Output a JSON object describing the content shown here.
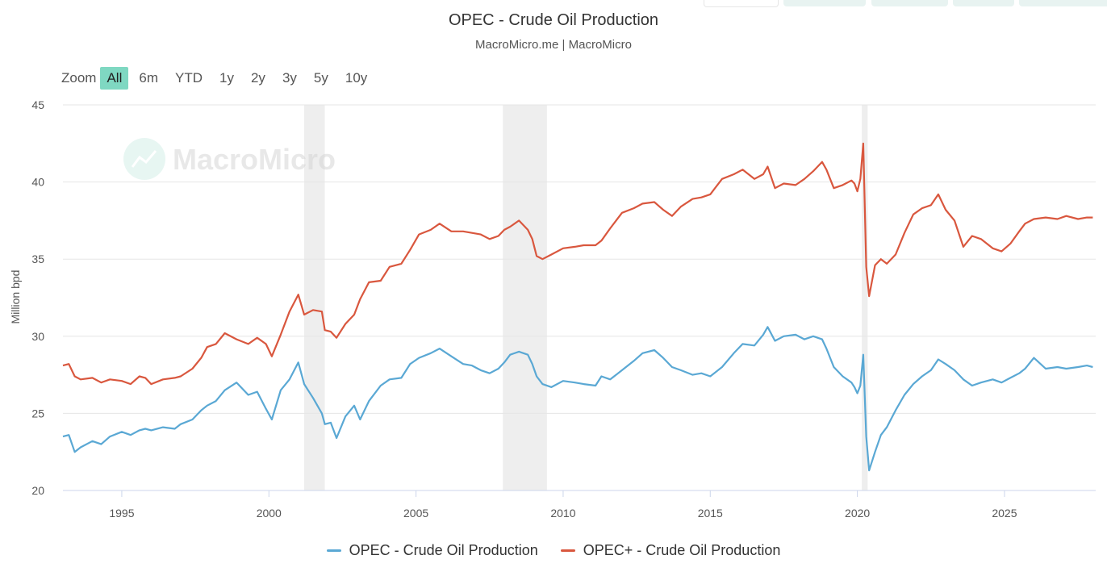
{
  "header": {
    "title": "OPEC - Crude Oil Production",
    "subtitle": "MacroMicro.me | MacroMicro"
  },
  "watermark": "MacroMicro",
  "zoom": {
    "label": "Zoom",
    "buttons": [
      "All",
      "6m",
      "YTD",
      "1y",
      "2y",
      "3y",
      "5y",
      "10y"
    ],
    "active": "All"
  },
  "colors": {
    "opec": "#5aa8d4",
    "opec_plus": "#d9573e",
    "recession": "#eeeeee",
    "grid": "#e6e6e6"
  },
  "chart_data": {
    "type": "line",
    "title": "OPEC - Crude Oil Production",
    "ylabel": "Million bpd",
    "xlabel": "",
    "ylim": [
      20,
      45
    ],
    "yticks": [
      20,
      25,
      30,
      35,
      40,
      45
    ],
    "xlim": [
      1993.0,
      2028.1
    ],
    "xticks": [
      1995,
      2000,
      2005,
      2010,
      2015,
      2020,
      2025
    ],
    "grid": true,
    "legend_position": "bottom",
    "recession_bands": [
      [
        2001.2,
        2001.9
      ],
      [
        2007.95,
        2009.45
      ],
      [
        2020.15,
        2020.35
      ]
    ],
    "series": [
      {
        "name": "OPEC - Crude Oil Production",
        "x": [
          1993.0,
          1993.2,
          1993.4,
          1993.6,
          1994.0,
          1994.3,
          1994.6,
          1995.0,
          1995.3,
          1995.6,
          1995.8,
          1996.0,
          1996.4,
          1996.8,
          1997.0,
          1997.4,
          1997.7,
          1997.9,
          1998.2,
          1998.5,
          1998.9,
          1999.3,
          1999.6,
          1999.9,
          2000.1,
          2000.4,
          2000.7,
          2001.0,
          2001.2,
          2001.5,
          2001.8,
          2001.9,
          2002.1,
          2002.3,
          2002.6,
          2002.9,
          2003.1,
          2003.4,
          2003.8,
          2004.1,
          2004.5,
          2004.8,
          2005.1,
          2005.5,
          2005.8,
          2006.2,
          2006.6,
          2006.9,
          2007.2,
          2007.5,
          2007.8,
          2008.0,
          2008.2,
          2008.5,
          2008.8,
          2008.95,
          2009.1,
          2009.3,
          2009.6,
          2010.0,
          2010.4,
          2010.7,
          2011.1,
          2011.3,
          2011.6,
          2012.0,
          2012.4,
          2012.7,
          2013.1,
          2013.4,
          2013.7,
          2014.0,
          2014.4,
          2014.7,
          2015.0,
          2015.4,
          2015.8,
          2016.1,
          2016.5,
          2016.8,
          2016.95,
          2017.2,
          2017.5,
          2017.9,
          2018.2,
          2018.5,
          2018.8,
          2018.95,
          2019.2,
          2019.5,
          2019.8,
          2019.9,
          2020.0,
          2020.1,
          2020.2,
          2020.3,
          2020.4,
          2020.6,
          2020.8,
          2021.0,
          2021.3,
          2021.6,
          2021.9,
          2022.2,
          2022.5,
          2022.75,
          2023.0,
          2023.3,
          2023.6,
          2023.9,
          2024.2,
          2024.6,
          2024.9,
          2025.2,
          2025.5,
          2025.7,
          2026.0,
          2026.4,
          2026.8,
          2027.1,
          2027.5,
          2027.8,
          2028.0
        ],
        "values": [
          23.5,
          23.6,
          22.5,
          22.8,
          23.2,
          23.0,
          23.5,
          23.8,
          23.6,
          23.9,
          24.0,
          23.9,
          24.1,
          24.0,
          24.3,
          24.6,
          25.2,
          25.5,
          25.8,
          26.5,
          27.0,
          26.2,
          26.4,
          25.3,
          24.6,
          26.5,
          27.2,
          28.3,
          26.9,
          26.0,
          25.0,
          24.3,
          24.4,
          23.4,
          24.8,
          25.5,
          24.6,
          25.8,
          26.8,
          27.2,
          27.3,
          28.2,
          28.6,
          28.9,
          29.2,
          28.7,
          28.2,
          28.1,
          27.8,
          27.6,
          27.9,
          28.3,
          28.8,
          29.0,
          28.8,
          28.2,
          27.4,
          26.9,
          26.7,
          27.1,
          27.0,
          26.9,
          26.8,
          27.4,
          27.2,
          27.8,
          28.4,
          28.9,
          29.1,
          28.6,
          28.0,
          27.8,
          27.5,
          27.6,
          27.4,
          28.0,
          28.9,
          29.5,
          29.4,
          30.1,
          30.6,
          29.7,
          30.0,
          30.1,
          29.8,
          30.0,
          29.8,
          29.2,
          28.0,
          27.4,
          27.0,
          26.7,
          26.3,
          26.8,
          28.8,
          23.5,
          21.3,
          22.5,
          23.6,
          24.1,
          25.2,
          26.2,
          26.9,
          27.4,
          27.8,
          28.5,
          28.2,
          27.8,
          27.2,
          26.8,
          27.0,
          27.2,
          27.0,
          27.3,
          27.6,
          27.9,
          28.6,
          27.9,
          28.0,
          27.9,
          28.0,
          28.1,
          28.0
        ]
      },
      {
        "name": "OPEC+ - Crude Oil Production",
        "x": [
          1993.0,
          1993.2,
          1993.4,
          1993.6,
          1994.0,
          1994.3,
          1994.6,
          1995.0,
          1995.3,
          1995.6,
          1995.8,
          1996.0,
          1996.4,
          1996.8,
          1997.0,
          1997.4,
          1997.7,
          1997.9,
          1998.2,
          1998.5,
          1998.9,
          1999.3,
          1999.6,
          1999.9,
          2000.1,
          2000.4,
          2000.7,
          2001.0,
          2001.2,
          2001.5,
          2001.8,
          2001.9,
          2002.1,
          2002.3,
          2002.6,
          2002.9,
          2003.1,
          2003.4,
          2003.8,
          2004.1,
          2004.5,
          2004.8,
          2005.1,
          2005.5,
          2005.8,
          2006.2,
          2006.6,
          2006.9,
          2007.2,
          2007.5,
          2007.8,
          2008.0,
          2008.2,
          2008.5,
          2008.8,
          2008.95,
          2009.1,
          2009.3,
          2009.6,
          2010.0,
          2010.4,
          2010.7,
          2011.1,
          2011.3,
          2011.6,
          2012.0,
          2012.4,
          2012.7,
          2013.1,
          2013.4,
          2013.7,
          2014.0,
          2014.4,
          2014.7,
          2015.0,
          2015.4,
          2015.8,
          2016.1,
          2016.5,
          2016.8,
          2016.95,
          2017.2,
          2017.5,
          2017.9,
          2018.2,
          2018.5,
          2018.8,
          2018.95,
          2019.2,
          2019.5,
          2019.8,
          2019.9,
          2020.0,
          2020.1,
          2020.2,
          2020.3,
          2020.4,
          2020.6,
          2020.8,
          2021.0,
          2021.3,
          2021.6,
          2021.9,
          2022.2,
          2022.5,
          2022.75,
          2023.0,
          2023.3,
          2023.6,
          2023.9,
          2024.2,
          2024.6,
          2024.9,
          2025.2,
          2025.5,
          2025.7,
          2026.0,
          2026.4,
          2026.8,
          2027.1,
          2027.5,
          2027.8,
          2028.0
        ],
        "values": [
          28.1,
          28.2,
          27.4,
          27.2,
          27.3,
          27.0,
          27.2,
          27.1,
          26.9,
          27.4,
          27.3,
          26.9,
          27.2,
          27.3,
          27.4,
          27.9,
          28.6,
          29.3,
          29.5,
          30.2,
          29.8,
          29.5,
          29.9,
          29.5,
          28.7,
          30.1,
          31.6,
          32.7,
          31.4,
          31.7,
          31.6,
          30.4,
          30.3,
          29.9,
          30.8,
          31.4,
          32.4,
          33.5,
          33.6,
          34.5,
          34.7,
          35.6,
          36.6,
          36.9,
          37.3,
          36.8,
          36.8,
          36.7,
          36.6,
          36.3,
          36.5,
          36.9,
          37.1,
          37.5,
          36.9,
          36.3,
          35.2,
          35.0,
          35.3,
          35.7,
          35.8,
          35.9,
          35.9,
          36.2,
          37.0,
          38.0,
          38.3,
          38.6,
          38.7,
          38.2,
          37.8,
          38.4,
          38.9,
          39.0,
          39.2,
          40.2,
          40.5,
          40.8,
          40.2,
          40.5,
          41.0,
          39.6,
          39.9,
          39.8,
          40.2,
          40.7,
          41.3,
          40.8,
          39.6,
          39.8,
          40.1,
          39.9,
          39.4,
          40.2,
          42.5,
          34.5,
          32.6,
          34.6,
          35.0,
          34.7,
          35.3,
          36.7,
          37.9,
          38.3,
          38.5,
          39.2,
          38.2,
          37.5,
          35.8,
          36.5,
          36.3,
          35.7,
          35.5,
          36.0,
          36.8,
          37.3,
          37.6,
          37.7,
          37.6,
          37.8,
          37.6,
          37.7,
          37.7
        ]
      }
    ]
  }
}
